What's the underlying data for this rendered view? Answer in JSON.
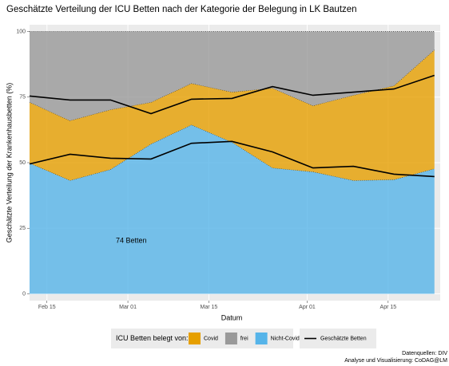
{
  "chart_data": {
    "type": "area",
    "title": "Geschätzte Verteilung der ICU Betten nach der Kategorie der Belegung in LK Bautzen",
    "x_label": "Datum",
    "y_label": "Geschätzte Verteilung der Krankenhausbetten (%)",
    "annotation": "74 Betten",
    "legend_title": "ICU Betten belegt von:",
    "caption": [
      "Datenquellen: DIV",
      "Analyse und Visualisierung: CoDAG@LM"
    ],
    "x": [
      "Feb 12",
      "Feb 19",
      "Feb 26",
      "Mar 05",
      "Mar 12",
      "Mar 19",
      "Mar 26",
      "Apr 02",
      "Apr 09",
      "Apr 16",
      "Apr 23"
    ],
    "xlim": [
      "Feb 12",
      "Apr 24"
    ],
    "xticks": [
      "Feb 15",
      "Mar 01",
      "Mar 15",
      "Apr 01",
      "Apr 15"
    ],
    "ylim": [
      -2.6,
      102.6
    ],
    "yticks": [
      0,
      25,
      50,
      75,
      100
    ],
    "grid": true,
    "series": [
      {
        "name": "Nicht-Covid",
        "color": "#56B4E9",
        "values": [
          49.8,
          43.2,
          47.4,
          57.1,
          64.4,
          57.8,
          48.0,
          46.5,
          43.2,
          43.5,
          47.7
        ]
      },
      {
        "name": "Covid",
        "color": "#E69F00",
        "values": [
          23.2,
          22.8,
          22.8,
          15.9,
          15.8,
          19.1,
          30.4,
          25.2,
          32.5,
          35.8,
          45.3
        ]
      },
      {
        "name": "frei",
        "color": "#999999",
        "values": [
          27.0,
          34.0,
          29.8,
          27.0,
          19.8,
          23.1,
          21.6,
          28.3,
          24.3,
          20.7,
          7.0
        ]
      }
    ],
    "legend_order": [
      1,
      2,
      0
    ],
    "estimate": {
      "name": "Geschätzte Betten",
      "color": "#000000",
      "lower": [
        49.5,
        53.2,
        51.7,
        51.4,
        57.4,
        58.1,
        54.1,
        48.0,
        48.6,
        45.6,
        44.7
      ],
      "upper": [
        75.4,
        73.9,
        73.9,
        68.7,
        74.2,
        74.5,
        79.0,
        75.7,
        76.9,
        78.1,
        83.3
      ]
    }
  }
}
